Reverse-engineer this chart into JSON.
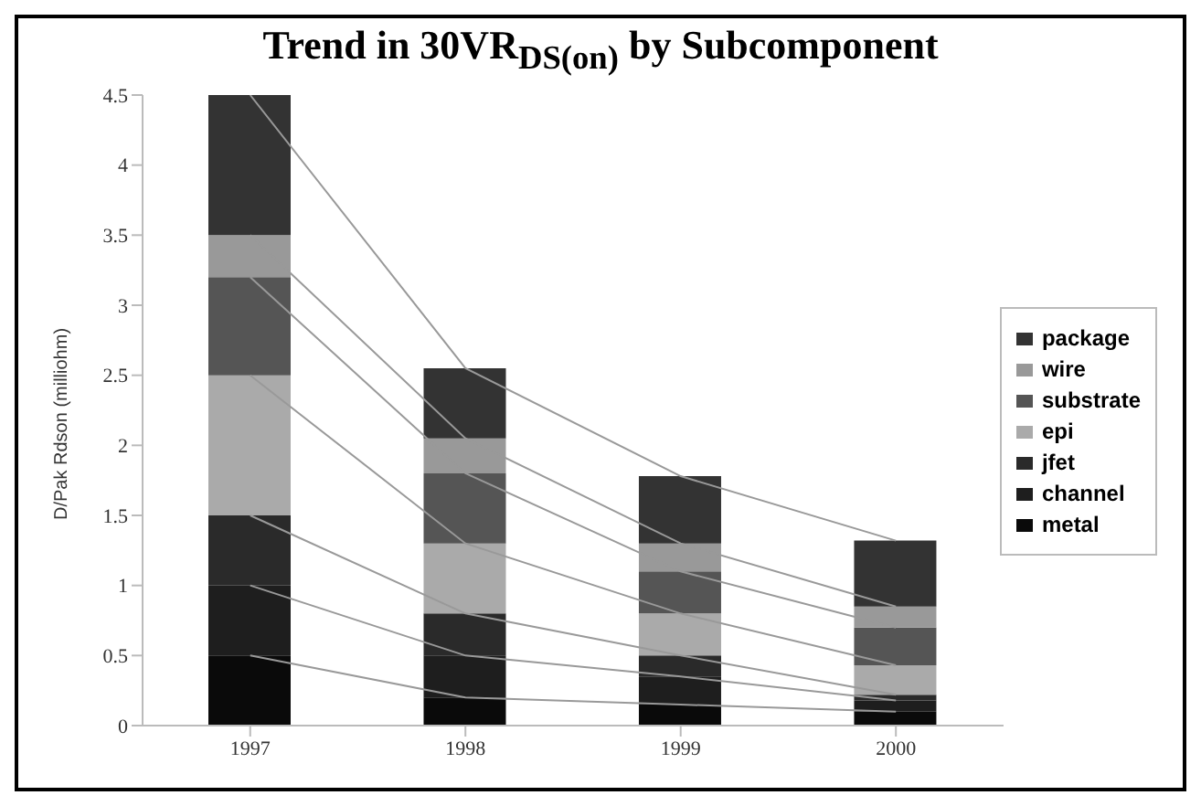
{
  "chart_data": {
    "type": "bar",
    "title": "Trend in 30VR$_{DS(on)}$ by Subcomponent",
    "ylabel": "D/Pak Rdson (milliohm)",
    "categories": [
      "1997",
      "1998",
      "1999",
      "2000"
    ],
    "stacked": true,
    "legend": "right",
    "grid": false,
    "ylim": [
      0,
      4.5
    ],
    "yticks": [
      0,
      0.5,
      1,
      1.5,
      2,
      2.5,
      3,
      3.5,
      4,
      4.5
    ],
    "series": [
      {
        "name": "metal",
        "color": "#0a0a0a",
        "values": [
          0.5,
          0.2,
          0.15,
          0.1
        ]
      },
      {
        "name": "channel",
        "color": "#1e1e1e",
        "values": [
          0.5,
          0.3,
          0.2,
          0.08
        ]
      },
      {
        "name": "jfet",
        "color": "#2a2a2a",
        "values": [
          0.5,
          0.3,
          0.15,
          0.04
        ]
      },
      {
        "name": "epi",
        "color": "#aaaaaa",
        "values": [
          1.0,
          0.5,
          0.3,
          0.21
        ]
      },
      {
        "name": "substrate",
        "color": "#555555",
        "values": [
          0.7,
          0.5,
          0.3,
          0.27
        ]
      },
      {
        "name": "wire",
        "color": "#999999",
        "values": [
          0.3,
          0.25,
          0.2,
          0.15
        ]
      },
      {
        "name": "package",
        "color": "#333333",
        "values": [
          1.0,
          0.5,
          0.48,
          0.47
        ]
      }
    ]
  }
}
